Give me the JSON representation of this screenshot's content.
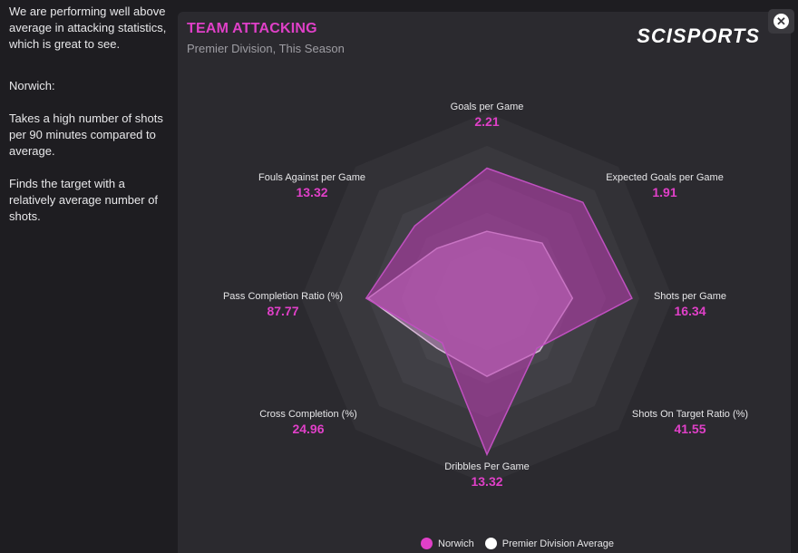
{
  "sidebar": {
    "intro": "We are performing well above average in attacking statistics, which is great to see.",
    "team": "Norwich:",
    "point1": "Takes a high number of shots per 90 minutes compared to average.",
    "point2": "Finds the target with a relatively average number of shots."
  },
  "panel": {
    "title": "TEAM ATTACKING",
    "subtitle": "Premier Division, This Season",
    "logo": "SCISPORTS"
  },
  "close_icon": "close-icon",
  "colors": {
    "accent": "#e040c8",
    "team_fill": "#b050b0",
    "avg_fill": "#c080c0",
    "bg": "#2b2a2f"
  },
  "chart_data": {
    "type": "radar",
    "title": "TEAM ATTACKING",
    "axes": [
      {
        "name": "Goals per Game",
        "value": "2.21",
        "team": 0.7,
        "avg": 0.36
      },
      {
        "name": "Expected Goals per Game",
        "value": "1.91",
        "team": 0.73,
        "avg": 0.42
      },
      {
        "name": "Shots per Game",
        "value": "16.34",
        "team": 0.78,
        "avg": 0.46
      },
      {
        "name": "Shots On Target Ratio (%)",
        "value": "41.55",
        "team": 0.38,
        "avg": 0.4
      },
      {
        "name": "Dribbles Per Game",
        "value": "13.32",
        "team": 0.84,
        "avg": 0.42
      },
      {
        "name": "Cross Completion (%)",
        "value": "24.96",
        "team": 0.34,
        "avg": 0.38
      },
      {
        "name": "Pass Completion Ratio (%)",
        "value": "87.77",
        "team": 0.65,
        "avg": 0.64
      },
      {
        "name": "Fouls Against per Game",
        "value": "13.32",
        "team": 0.55,
        "avg": 0.38
      }
    ],
    "series": [
      {
        "name": "Norwich"
      },
      {
        "name": "Premier Division Average"
      }
    ]
  }
}
